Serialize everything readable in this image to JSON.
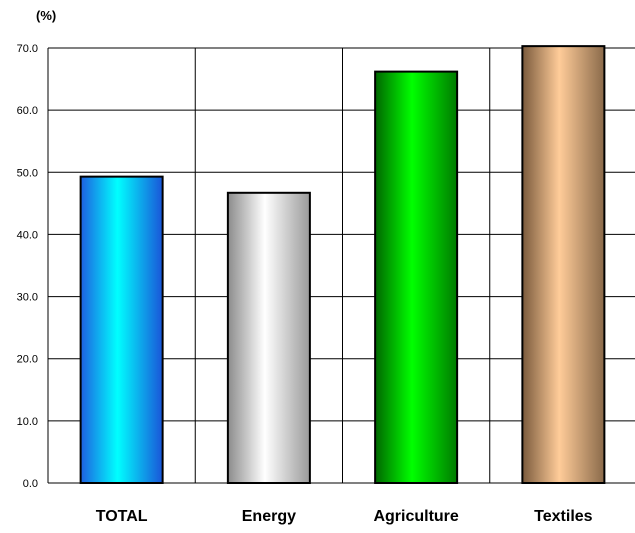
{
  "chart_data": {
    "type": "bar",
    "title": "",
    "xlabel": "",
    "ylabel": "(%)",
    "categories": [
      "TOTAL",
      "Energy",
      "Agriculture",
      "Textiles"
    ],
    "values": [
      49.3,
      46.7,
      66.2,
      70.3
    ],
    "ylim": [
      0,
      70
    ],
    "yticks": [
      "0.0",
      "10.0",
      "20.0",
      "30.0",
      "40.0",
      "50.0",
      "60.0",
      "70.0"
    ],
    "grid": true,
    "legend": "none",
    "bar_colors": [
      {
        "edge": "#1e5fe0",
        "mid": "#00ffff",
        "dark": "#1a55d8"
      },
      {
        "edge": "#8c8c8c",
        "mid": "#ffffff",
        "dark": "#9a9a9a"
      },
      {
        "edge": "#006600",
        "mid": "#00ff00",
        "dark": "#007a00"
      },
      {
        "edge": "#7a5a3c",
        "mid": "#ffcc99",
        "dark": "#8a6a4a"
      }
    ],
    "bar_outline": "#000000",
    "gridline_color": "#000000"
  }
}
